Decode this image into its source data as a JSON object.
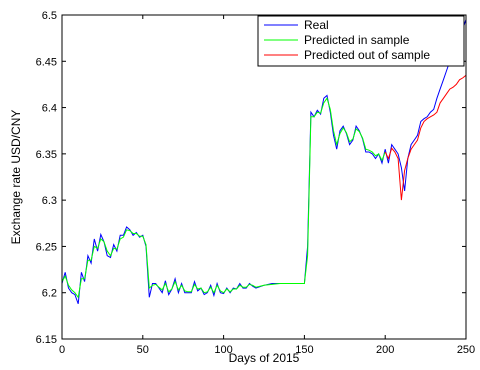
{
  "chart_data": {
    "type": "line",
    "xlabel": "Days of 2015",
    "ylabel": "Exchange rate USD/CNY",
    "xlim": [
      0,
      250
    ],
    "ylim": [
      6.15,
      6.5
    ],
    "x_ticks": [
      "0",
      "50",
      "100",
      "150",
      "200",
      "250"
    ],
    "y_ticks": [
      "6.15",
      "6.2",
      "6.25",
      "6.3",
      "6.35",
      "6.4",
      "6.45",
      "6.5"
    ],
    "grid": false,
    "legend_position": "top-right",
    "series": [
      {
        "name": "Real",
        "color": "#0000ff",
        "x": [
          0,
          2,
          4,
          6,
          8,
          10,
          12,
          14,
          16,
          18,
          20,
          22,
          24,
          26,
          28,
          30,
          32,
          34,
          36,
          38,
          40,
          42,
          44,
          46,
          48,
          50,
          52,
          54,
          56,
          58,
          60,
          62,
          64,
          66,
          68,
          70,
          72,
          74,
          76,
          78,
          80,
          82,
          84,
          86,
          88,
          90,
          92,
          94,
          96,
          98,
          100,
          102,
          104,
          106,
          108,
          110,
          112,
          114,
          116,
          118,
          120,
          125,
          130,
          135,
          140,
          145,
          150,
          152,
          154,
          156,
          158,
          160,
          162,
          164,
          166,
          168,
          170,
          172,
          174,
          176,
          178,
          180,
          182,
          184,
          186,
          188,
          190,
          192,
          194,
          196,
          198,
          200,
          202,
          204,
          206,
          208,
          210,
          212,
          214,
          216,
          218,
          220,
          222,
          224,
          226,
          228,
          230,
          232,
          234,
          236,
          238,
          240,
          242,
          244,
          246,
          248,
          250
        ],
        "values": [
          6.21,
          6.222,
          6.205,
          6.2,
          6.198,
          6.188,
          6.222,
          6.212,
          6.24,
          6.232,
          6.258,
          6.245,
          6.263,
          6.255,
          6.24,
          6.238,
          6.252,
          6.245,
          6.262,
          6.262,
          6.271,
          6.268,
          6.262,
          6.265,
          6.26,
          6.262,
          6.25,
          6.195,
          6.21,
          6.21,
          6.205,
          6.2,
          6.213,
          6.198,
          6.204,
          6.215,
          6.2,
          6.21,
          6.2,
          6.2,
          6.2,
          6.212,
          6.202,
          6.205,
          6.198,
          6.2,
          6.208,
          6.197,
          6.21,
          6.2,
          6.199,
          6.205,
          6.2,
          6.205,
          6.204,
          6.21,
          6.205,
          6.205,
          6.21,
          6.207,
          6.205,
          6.208,
          6.21,
          6.21,
          6.21,
          6.21,
          6.21,
          6.25,
          6.395,
          6.39,
          6.397,
          6.393,
          6.41,
          6.413,
          6.395,
          6.37,
          6.355,
          6.375,
          6.38,
          6.372,
          6.36,
          6.365,
          6.38,
          6.375,
          6.366,
          6.352,
          6.352,
          6.35,
          6.345,
          6.35,
          6.34,
          6.355,
          6.34,
          6.36,
          6.355,
          6.35,
          6.335,
          6.31,
          6.345,
          6.36,
          6.365,
          6.37,
          6.385,
          6.388,
          6.39,
          6.395,
          6.398,
          6.41,
          6.42,
          6.43,
          6.44,
          6.45,
          6.455,
          6.465,
          6.478,
          6.485,
          6.495
        ]
      },
      {
        "name": "Predicted in sample",
        "color": "#00ff00",
        "x": [
          0,
          2,
          4,
          6,
          8,
          10,
          12,
          14,
          16,
          18,
          20,
          22,
          24,
          26,
          28,
          30,
          32,
          34,
          36,
          38,
          40,
          42,
          44,
          46,
          48,
          50,
          52,
          54,
          56,
          58,
          60,
          62,
          64,
          66,
          68,
          70,
          72,
          74,
          76,
          78,
          80,
          82,
          84,
          86,
          88,
          90,
          92,
          94,
          96,
          98,
          100,
          102,
          104,
          106,
          108,
          110,
          112,
          114,
          116,
          118,
          120,
          125,
          130,
          135,
          140,
          145,
          150,
          152,
          154,
          156,
          158,
          160,
          162,
          164,
          166,
          168,
          170,
          172,
          174,
          176,
          178,
          180,
          182,
          184,
          186,
          188,
          190,
          192,
          194,
          196,
          198,
          200
        ],
        "values": [
          6.212,
          6.218,
          6.208,
          6.203,
          6.2,
          6.195,
          6.215,
          6.215,
          6.235,
          6.235,
          6.25,
          6.248,
          6.258,
          6.255,
          6.245,
          6.24,
          6.248,
          6.247,
          6.258,
          6.26,
          6.268,
          6.267,
          6.264,
          6.264,
          6.261,
          6.261,
          6.252,
          6.205,
          6.208,
          6.209,
          6.206,
          6.203,
          6.21,
          6.201,
          6.204,
          6.212,
          6.203,
          6.208,
          6.202,
          6.201,
          6.201,
          6.209,
          6.204,
          6.205,
          6.2,
          6.201,
          6.206,
          6.2,
          6.208,
          6.202,
          6.2,
          6.204,
          6.201,
          6.204,
          6.204,
          6.208,
          6.206,
          6.206,
          6.209,
          6.208,
          6.206,
          6.208,
          6.209,
          6.21,
          6.21,
          6.21,
          6.21,
          6.24,
          6.39,
          6.39,
          6.395,
          6.394,
          6.405,
          6.41,
          6.398,
          6.375,
          6.36,
          6.372,
          6.378,
          6.373,
          6.363,
          6.366,
          6.377,
          6.374,
          6.367,
          6.355,
          6.354,
          6.352,
          6.348,
          6.35,
          6.343,
          6.352
        ]
      },
      {
        "name": "Predicted out of sample",
        "color": "#ff0000",
        "x": [
          200,
          202,
          204,
          206,
          208,
          210,
          212,
          214,
          216,
          218,
          220,
          222,
          224,
          226,
          228,
          230,
          232,
          234,
          236,
          238,
          240,
          242,
          244,
          246,
          248,
          250
        ],
        "values": [
          6.352,
          6.345,
          6.356,
          6.352,
          6.345,
          6.3,
          6.332,
          6.345,
          6.355,
          6.36,
          6.365,
          6.378,
          6.385,
          6.388,
          6.39,
          6.392,
          6.395,
          6.405,
          6.41,
          6.415,
          6.42,
          6.422,
          6.425,
          6.43,
          6.432,
          6.435
        ]
      }
    ]
  }
}
